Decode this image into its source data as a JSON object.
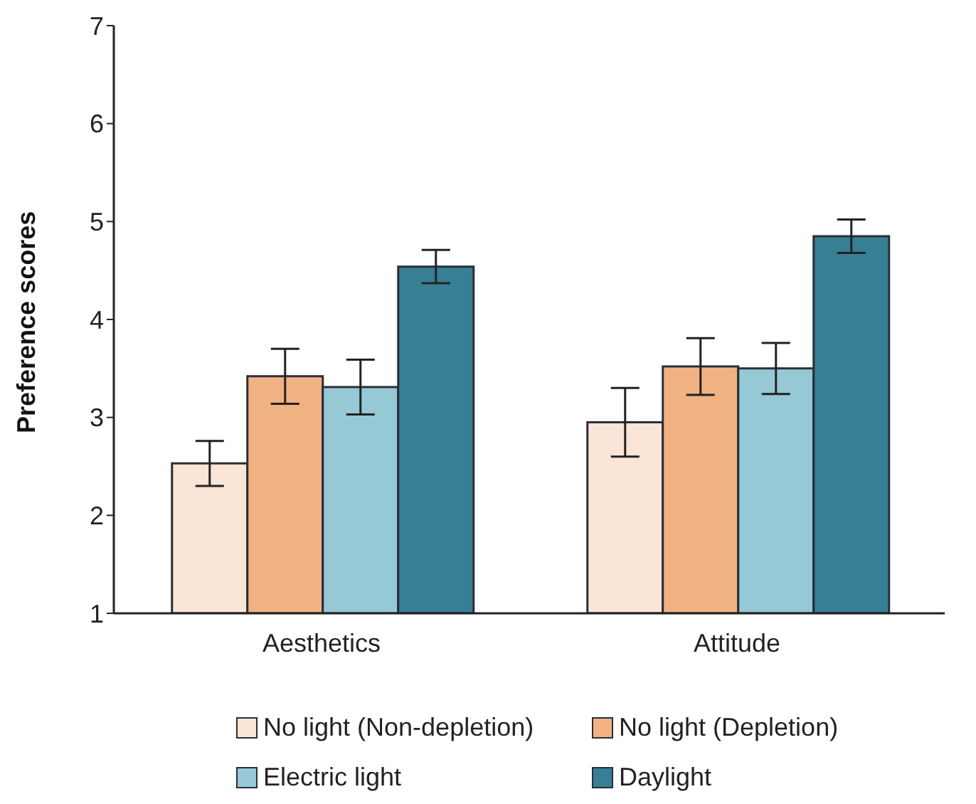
{
  "chart_data": {
    "type": "bar",
    "ylabel": "Preference scores",
    "categories": [
      "Aesthetics",
      "Attitude"
    ],
    "series": [
      {
        "name": "No light (Non-depletion)",
        "color": "#fbe5d6",
        "values": [
          2.53,
          2.95
        ],
        "errors": [
          0.23,
          0.35
        ]
      },
      {
        "name": "No light (Depletion)",
        "color": "#f0b183",
        "values": [
          3.42,
          3.52
        ],
        "errors": [
          0.28,
          0.29
        ]
      },
      {
        "name": "Electric light",
        "color": "#96c8d6",
        "values": [
          3.31,
          3.5
        ],
        "errors": [
          0.28,
          0.26
        ]
      },
      {
        "name": "Daylight",
        "color": "#377f95",
        "values": [
          4.54,
          4.85
        ],
        "errors": [
          0.17,
          0.17
        ]
      }
    ],
    "ylim": [
      1,
      7
    ],
    "yticks": [
      1,
      2,
      3,
      4,
      5,
      6,
      7
    ],
    "grid": false,
    "legend": "bottom"
  }
}
